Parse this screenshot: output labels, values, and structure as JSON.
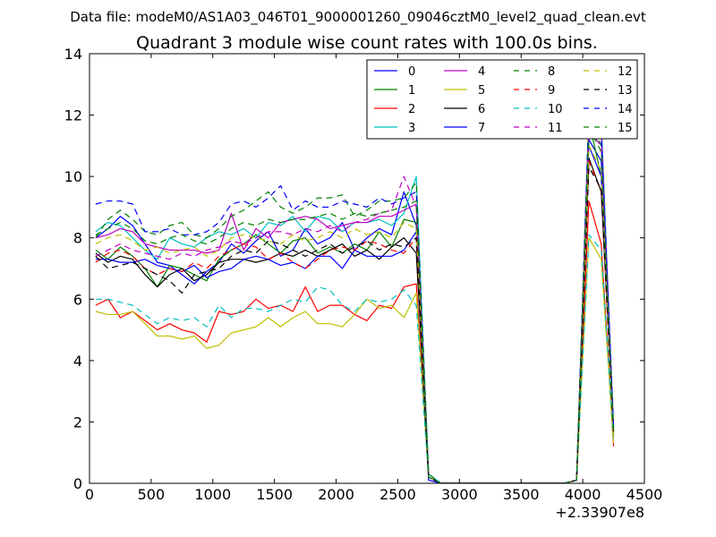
{
  "chart_data": {
    "type": "line",
    "suptitle": "Data file: modeM0/AS1A03_046T01_9000001260_09046cztM0_level2_quad_clean.evt",
    "title": "Quadrant 3 module wise count rates with 100.0s bins.",
    "xlabel": "",
    "ylabel": "",
    "x_offset_label": "+2.33907e8",
    "xlim": [
      0,
      4500
    ],
    "ylim": [
      0,
      14
    ],
    "xticks": [
      0,
      500,
      1000,
      1500,
      2000,
      2500,
      3000,
      3500,
      4000,
      4500
    ],
    "yticks": [
      0,
      2,
      4,
      6,
      8,
      10,
      12,
      14
    ],
    "legend_position": "top-right",
    "x": [
      50,
      150,
      250,
      350,
      450,
      550,
      650,
      750,
      850,
      950,
      1050,
      1150,
      1250,
      1350,
      1450,
      1550,
      1650,
      1750,
      1850,
      1950,
      2050,
      2150,
      2250,
      2350,
      2450,
      2550,
      2650,
      2750,
      2850,
      2950,
      3050,
      3150,
      3250,
      3350,
      3450,
      3550,
      3650,
      3750,
      3850,
      3950,
      4050,
      4150,
      4250
    ],
    "series": [
      {
        "name": "0",
        "color": "#0000ff",
        "dashed": false,
        "values": [
          8.0,
          8.3,
          8.7,
          8.4,
          7.8,
          7.2,
          7.1,
          6.8,
          6.5,
          6.9,
          7.2,
          7.8,
          7.5,
          7.9,
          8.2,
          7.4,
          7.6,
          8.3,
          7.8,
          8.0,
          8.5,
          7.6,
          8.0,
          8.3,
          8.1,
          9.5,
          8.4,
          0.2,
          0.0,
          0,
          0,
          0,
          0,
          0,
          0,
          0,
          0,
          0,
          0,
          0.1,
          11.2,
          10.5,
          1.8
        ]
      },
      {
        "name": "1",
        "color": "#008000",
        "dashed": false,
        "values": [
          7.6,
          7.3,
          7.7,
          7.4,
          7.0,
          6.4,
          7.1,
          7.0,
          6.8,
          6.6,
          7.3,
          7.6,
          7.8,
          8.1,
          7.8,
          7.5,
          7.9,
          8.0,
          7.5,
          7.7,
          7.5,
          7.8,
          7.6,
          8.2,
          7.7,
          8.6,
          8.5,
          0.3,
          0.0,
          0,
          0,
          0,
          0,
          0,
          0,
          0,
          0,
          0,
          0,
          0.1,
          11.8,
          10.0,
          1.6
        ]
      },
      {
        "name": "2",
        "color": "#ff0000",
        "dashed": false,
        "values": [
          5.8,
          6.0,
          5.4,
          5.6,
          5.3,
          5.0,
          5.2,
          5.0,
          4.9,
          4.6,
          5.6,
          5.5,
          5.6,
          6.0,
          5.7,
          5.8,
          5.6,
          6.4,
          5.6,
          5.8,
          5.8,
          5.5,
          5.3,
          5.8,
          5.7,
          6.4,
          6.5,
          0.2,
          0.0,
          0,
          0,
          0,
          0,
          0,
          0,
          0,
          0,
          0,
          0,
          0.1,
          9.2,
          7.8,
          1.2
        ]
      },
      {
        "name": "3",
        "color": "#00bfbf",
        "dashed": false,
        "values": [
          8.2,
          8.5,
          8.4,
          8.0,
          7.6,
          7.3,
          8.0,
          7.8,
          7.7,
          8.0,
          8.2,
          8.1,
          8.3,
          8.0,
          8.5,
          8.4,
          8.7,
          8.2,
          8.7,
          8.6,
          8.2,
          8.5,
          8.5,
          8.6,
          8.4,
          8.8,
          10.0,
          0.3,
          0.0,
          0,
          0,
          0,
          0,
          0,
          0,
          0,
          0,
          0,
          0,
          0.1,
          12.0,
          11.9,
          1.7
        ]
      },
      {
        "name": "4",
        "color": "#bf00bf",
        "dashed": false,
        "values": [
          8.0,
          8.1,
          8.3,
          8.2,
          7.8,
          7.7,
          7.6,
          7.6,
          7.6,
          7.5,
          7.6,
          8.8,
          7.6,
          8.3,
          8.0,
          8.5,
          8.6,
          8.7,
          8.6,
          8.3,
          8.4,
          8.5,
          8.5,
          8.7,
          8.7,
          8.9,
          9.1,
          0.2,
          0.0,
          0,
          0,
          0,
          0,
          0,
          0,
          0,
          0,
          0,
          0,
          0.1,
          12.0,
          11.5,
          1.8
        ]
      },
      {
        "name": "5",
        "color": "#bfbf00",
        "dashed": false,
        "values": [
          5.6,
          5.5,
          5.5,
          5.6,
          5.2,
          4.8,
          4.8,
          4.7,
          4.8,
          4.4,
          4.5,
          4.9,
          5.0,
          5.1,
          5.4,
          5.1,
          5.4,
          5.6,
          5.2,
          5.2,
          5.1,
          5.5,
          6.0,
          5.7,
          5.8,
          5.4,
          6.2,
          0.2,
          0.0,
          0,
          0,
          0,
          0,
          0,
          0,
          0,
          0,
          0,
          0,
          0.1,
          8.0,
          7.3,
          1.3
        ]
      },
      {
        "name": "6",
        "color": "#000000",
        "dashed": false,
        "values": [
          7.5,
          7.2,
          7.4,
          7.3,
          6.8,
          6.4,
          6.8,
          7.0,
          6.6,
          6.8,
          7.2,
          7.3,
          7.3,
          7.2,
          7.3,
          7.5,
          7.4,
          7.6,
          7.4,
          7.6,
          7.8,
          7.4,
          7.6,
          7.3,
          7.7,
          8.0,
          7.5,
          0.2,
          0.0,
          0,
          0,
          0,
          0,
          0,
          0,
          0,
          0,
          0,
          0,
          0.1,
          10.6,
          9.5,
          1.6
        ]
      },
      {
        "name": "7",
        "color": "#0000ff",
        "dashed": false,
        "values": [
          7.3,
          7.3,
          7.2,
          7.2,
          7.3,
          7.1,
          7.0,
          6.9,
          7.1,
          6.7,
          6.9,
          7.0,
          7.3,
          7.4,
          7.3,
          7.1,
          7.2,
          7.0,
          7.4,
          7.4,
          7.0,
          7.6,
          7.4,
          7.4,
          7.4,
          7.6,
          8.2,
          0.1,
          0.0,
          0,
          0,
          0,
          0,
          0,
          0,
          0,
          0,
          0,
          0,
          0.1,
          11.0,
          10.0,
          1.5
        ]
      },
      {
        "name": "8",
        "color": "#008000",
        "dashed": true,
        "values": [
          8.0,
          8.6,
          8.9,
          8.6,
          8.2,
          8.1,
          8.4,
          8.5,
          8.1,
          8.0,
          8.3,
          8.7,
          8.9,
          9.2,
          9.5,
          9.0,
          8.8,
          9.0,
          9.3,
          9.3,
          9.4,
          8.7,
          8.9,
          9.2,
          9.2,
          9.3,
          9.8,
          0.3,
          0.0,
          0,
          0,
          0,
          0,
          0,
          0,
          0,
          0,
          0,
          0,
          0.1,
          11.9,
          11.0,
          1.8
        ]
      },
      {
        "name": "9",
        "color": "#ff0000",
        "dashed": true,
        "values": [
          7.2,
          7.5,
          7.6,
          7.4,
          7.0,
          6.8,
          7.0,
          6.9,
          7.2,
          7.0,
          7.4,
          7.6,
          7.8,
          7.7,
          7.3,
          7.5,
          7.2,
          7.0,
          7.3,
          7.6,
          7.7,
          7.6,
          7.9,
          7.8,
          7.6,
          7.5,
          8.0,
          0.2,
          0.0,
          0,
          0,
          0,
          0,
          0,
          0,
          0,
          0,
          0,
          0,
          0.1,
          10.5,
          9.5,
          1.5
        ]
      },
      {
        "name": "10",
        "color": "#00bfbf",
        "dashed": true,
        "values": [
          6.0,
          6.0,
          5.9,
          5.8,
          5.5,
          5.2,
          5.4,
          5.3,
          5.4,
          5.1,
          5.8,
          5.4,
          5.7,
          5.7,
          5.6,
          5.8,
          6.0,
          5.9,
          6.4,
          6.3,
          5.8,
          5.6,
          6.0,
          5.9,
          6.0,
          6.3,
          5.8,
          0.2,
          0.0,
          0,
          0,
          0,
          0,
          0,
          0,
          0,
          0,
          0,
          0,
          0.1,
          8.1,
          7.6,
          1.4
        ]
      },
      {
        "name": "11",
        "color": "#bf00bf",
        "dashed": true,
        "values": [
          7.4,
          7.6,
          7.8,
          7.6,
          7.5,
          7.4,
          7.3,
          7.5,
          7.4,
          7.6,
          7.7,
          7.9,
          7.8,
          8.0,
          8.2,
          8.2,
          8.1,
          8.3,
          8.2,
          8.4,
          8.2,
          8.5,
          8.6,
          8.8,
          8.9,
          10.0,
          9.0,
          0.2,
          0.0,
          0,
          0,
          0,
          0,
          0,
          0,
          0,
          0,
          0,
          0,
          0.1,
          11.5,
          11.0,
          1.7
        ]
      },
      {
        "name": "12",
        "color": "#bfbf00",
        "dashed": true,
        "values": [
          7.8,
          8.0,
          8.1,
          7.9,
          7.6,
          7.7,
          7.5,
          7.6,
          7.7,
          7.4,
          7.6,
          8.0,
          8.1,
          8.0,
          7.9,
          7.8,
          8.1,
          7.9,
          8.0,
          8.2,
          8.0,
          8.3,
          8.1,
          8.2,
          8.0,
          8.5,
          8.3,
          0.2,
          0.0,
          0,
          0,
          0,
          0,
          0,
          0,
          0,
          0,
          0,
          0,
          0.1,
          11.0,
          10.2,
          1.5
        ]
      },
      {
        "name": "13",
        "color": "#000000",
        "dashed": true,
        "values": [
          7.4,
          7.0,
          7.1,
          7.2,
          7.0,
          6.8,
          6.6,
          6.2,
          6.8,
          6.9,
          7.0,
          7.4,
          7.6,
          7.5,
          7.9,
          7.8,
          7.6,
          7.4,
          7.6,
          7.8,
          7.5,
          7.7,
          7.9,
          7.6,
          7.8,
          7.7,
          8.0,
          0.2,
          0.0,
          0,
          0,
          0,
          0,
          0,
          0,
          0,
          0,
          0,
          0,
          0.1,
          10.3,
          9.6,
          1.6
        ]
      },
      {
        "name": "14",
        "color": "#0000ff",
        "dashed": true,
        "values": [
          9.1,
          9.2,
          9.2,
          9.1,
          8.2,
          8.2,
          8.3,
          8.1,
          8.1,
          8.2,
          8.5,
          9.1,
          9.2,
          9.0,
          9.3,
          9.7,
          8.9,
          9.2,
          9.0,
          9.0,
          9.2,
          9.1,
          9.0,
          9.3,
          9.1,
          9.3,
          9.5,
          0.2,
          0.0,
          0,
          0,
          0,
          0,
          0,
          0,
          0,
          0,
          0,
          0,
          0.1,
          12.2,
          11.3,
          1.9
        ]
      },
      {
        "name": "15",
        "color": "#008000",
        "dashed": true,
        "values": [
          8.1,
          8.3,
          8.5,
          8.3,
          7.9,
          7.8,
          8.0,
          8.1,
          7.9,
          7.8,
          8.0,
          8.3,
          8.5,
          8.4,
          8.6,
          8.5,
          8.6,
          8.6,
          8.7,
          8.8,
          8.6,
          8.8,
          8.7,
          8.8,
          8.9,
          9.0,
          9.2,
          0.2,
          0.0,
          0,
          0,
          0,
          0,
          0,
          0,
          0,
          0,
          0,
          0,
          0.1,
          11.6,
          10.8,
          1.7
        ]
      }
    ]
  }
}
